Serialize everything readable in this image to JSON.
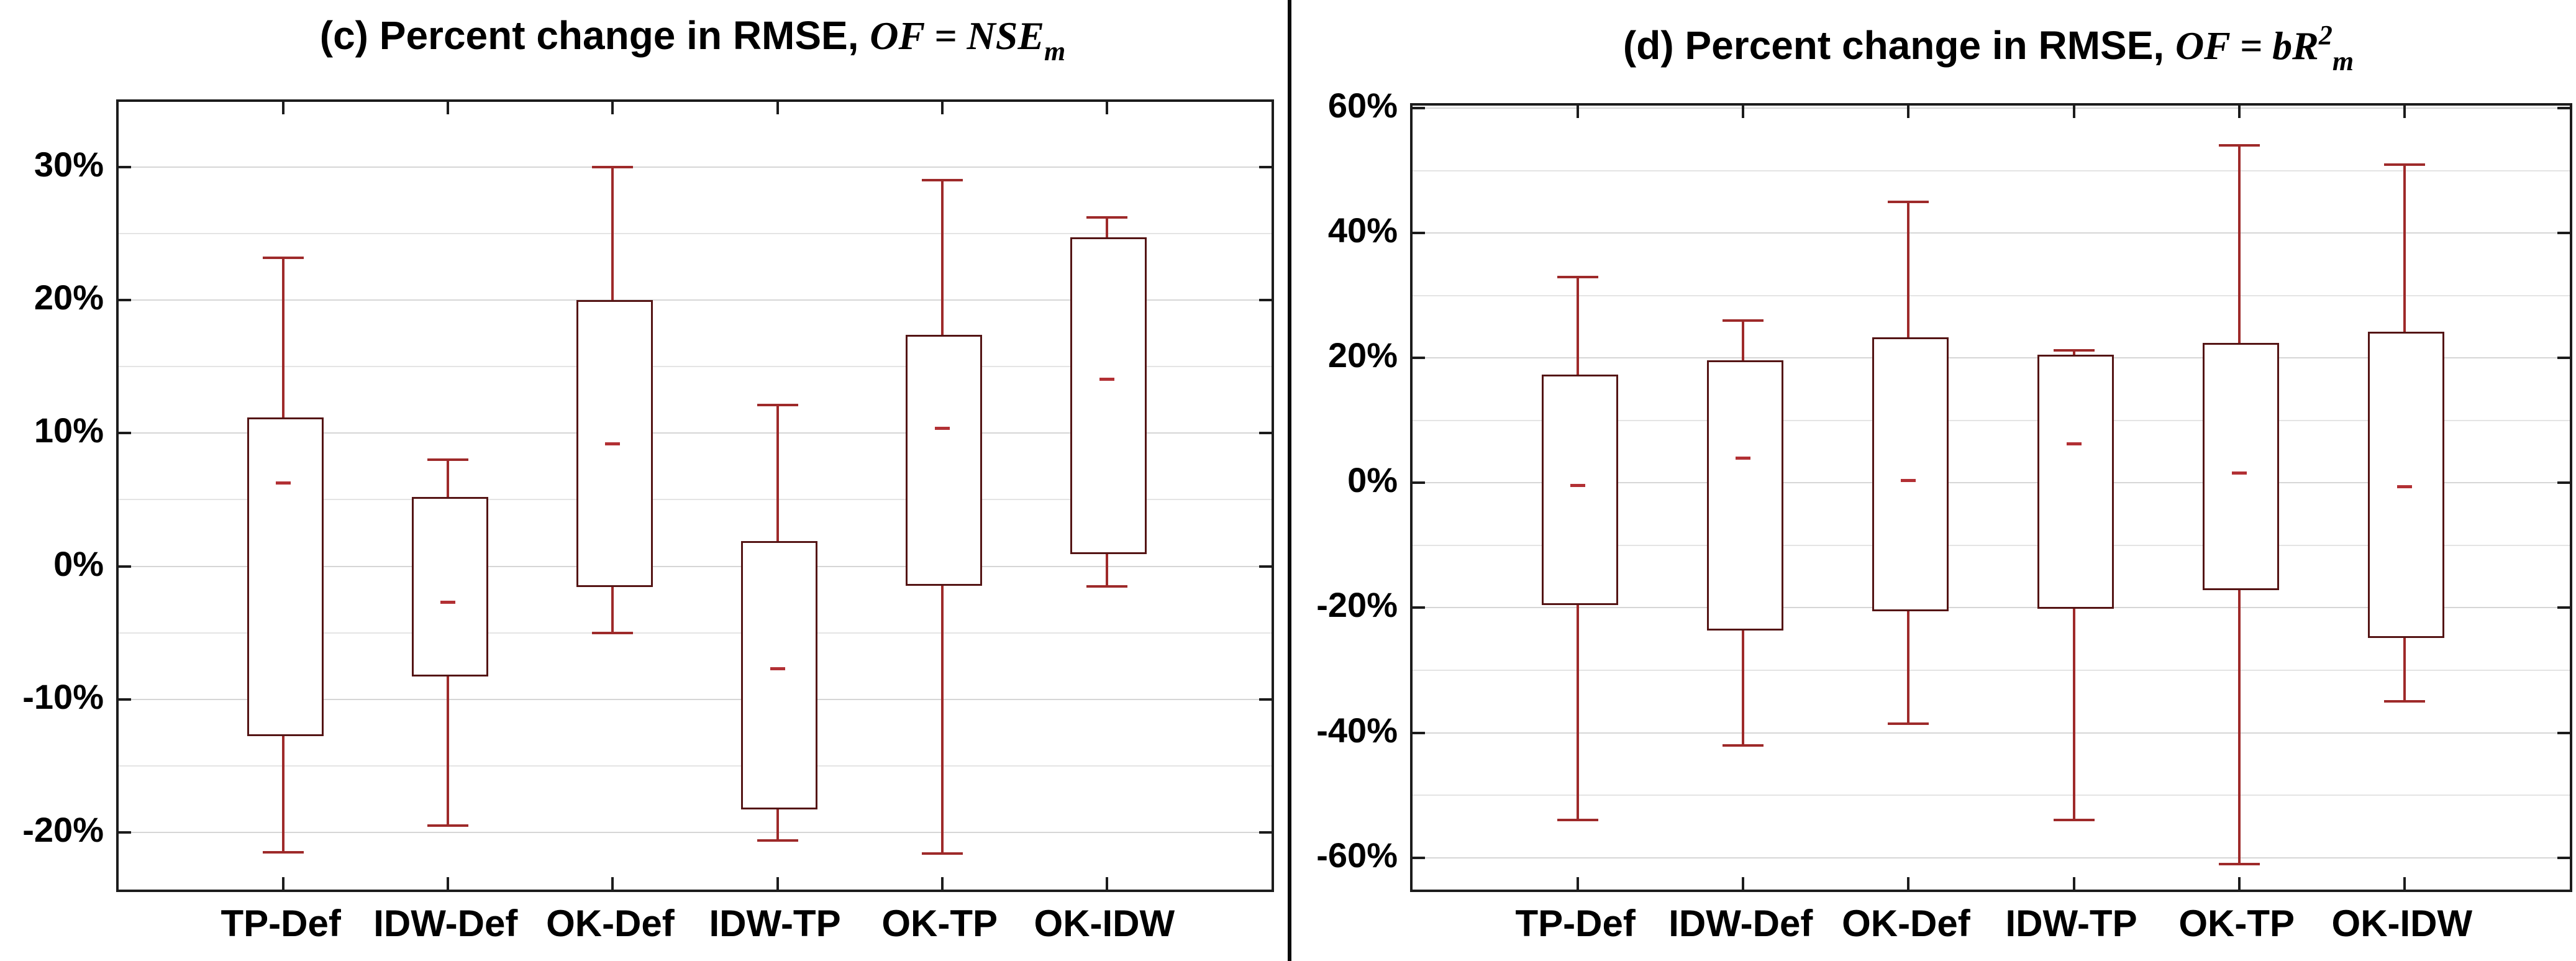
{
  "figure": {
    "background": "#ffffff",
    "divider_color": "#0a0a0a",
    "colors": {
      "box_border": "#541414",
      "whisker": "#9e2a2a",
      "median": "#b23034",
      "grid_minor": "#e4e4e4",
      "grid_major": "#d6d6d6",
      "axis": "#1c1c1c",
      "text": "#000000"
    }
  },
  "chart_data": [
    {
      "type": "boxplot",
      "panel": "c",
      "title_plain": "(c) Percent change in RMSE, ",
      "title_math": "OF = NSE",
      "title_math_sub": "m",
      "title_math_sup": "",
      "ylabel": "Percent change in RMSE",
      "categories": [
        "TP-Def",
        "IDW-Def",
        "OK-Def",
        "IDW-TP",
        "OK-TP",
        "OK-IDW"
      ],
      "ytick_values": [
        30,
        20,
        10,
        0,
        -10,
        -20
      ],
      "ytick_labels": [
        "30%",
        "20%",
        "10%",
        "0%",
        "-10%",
        "-20%"
      ],
      "minor_step": 5,
      "ylim": [
        -24.3,
        34.9
      ],
      "grid": true,
      "legend": "none",
      "series": [
        {
          "name": "TP-Def",
          "whisker_low": -21.5,
          "q1": -12.5,
          "median": 6.3,
          "q3": 11.2,
          "whisker_high": 23.2
        },
        {
          "name": "IDW-Def",
          "whisker_low": -19.5,
          "q1": -8.0,
          "median": -2.7,
          "q3": 5.2,
          "whisker_high": 8.0
        },
        {
          "name": "OK-Def",
          "whisker_low": -5.0,
          "q1": -1.3,
          "median": 9.2,
          "q3": 20.0,
          "whisker_high": 30.0
        },
        {
          "name": "IDW-TP",
          "whisker_low": -20.6,
          "q1": -18.0,
          "median": -7.7,
          "q3": 1.9,
          "whisker_high": 12.1
        },
        {
          "name": "OK-TP",
          "whisker_low": -21.6,
          "q1": -1.2,
          "median": 10.4,
          "q3": 17.4,
          "whisker_high": 29.0
        },
        {
          "name": "OK-IDW",
          "whisker_low": -1.5,
          "q1": 1.2,
          "median": 14.1,
          "q3": 24.7,
          "whisker_high": 26.2
        }
      ]
    },
    {
      "type": "boxplot",
      "panel": "d",
      "title_plain": "(d) Percent change in RMSE, ",
      "title_math": "OF = bR",
      "title_math_sub": "m",
      "title_math_sup": "2",
      "ylabel": "Percent change in RMSE",
      "categories": [
        "TP-Def",
        "IDW-Def",
        "OK-Def",
        "IDW-TP",
        "OK-TP",
        "OK-IDW"
      ],
      "ytick_values": [
        60,
        40,
        20,
        0,
        -20,
        -40,
        -60
      ],
      "ytick_labels": [
        "60%",
        "40%",
        "20%",
        "0%",
        "-20%",
        "-40%",
        "-60%"
      ],
      "minor_step": 10,
      "ylim": [
        -65.1,
        60.4
      ],
      "grid": true,
      "legend": "none",
      "series": [
        {
          "name": "TP-Def",
          "whisker_low": -54.0,
          "q1": -19.0,
          "median": -0.4,
          "q3": 17.3,
          "whisker_high": 33.0
        },
        {
          "name": "IDW-Def",
          "whisker_low": -42.0,
          "q1": -23.0,
          "median": 4.0,
          "q3": 19.6,
          "whisker_high": 26.0
        },
        {
          "name": "OK-Def",
          "whisker_low": -38.5,
          "q1": -20.0,
          "median": 0.4,
          "q3": 23.3,
          "whisker_high": 45.0
        },
        {
          "name": "IDW-TP",
          "whisker_low": -54.0,
          "q1": -19.6,
          "median": 6.3,
          "q3": 20.5,
          "whisker_high": 21.2
        },
        {
          "name": "OK-TP",
          "whisker_low": -61.0,
          "q1": -16.6,
          "median": 1.6,
          "q3": 22.4,
          "whisker_high": 54.0
        },
        {
          "name": "OK-IDW",
          "whisker_low": -35.0,
          "q1": -24.2,
          "median": -0.6,
          "q3": 24.2,
          "whisker_high": 51.0
        }
      ]
    }
  ]
}
